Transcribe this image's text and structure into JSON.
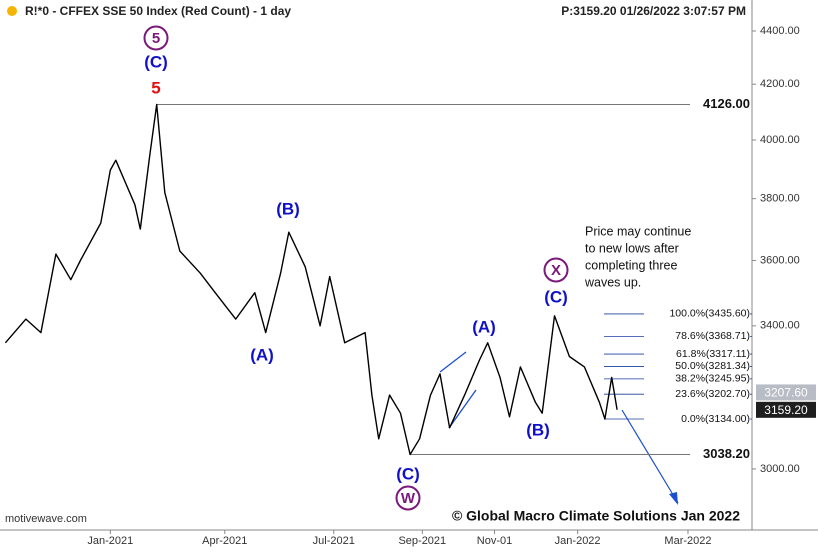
{
  "chart_data": {
    "type": "line",
    "title": "R!*0 - CFFEX SSE 50 Index (Red Count) - 1 day",
    "price_header": "P:3159.20  01/26/2022 3:07:57 PM",
    "log_scale": true,
    "grid": false,
    "x": [
      -77,
      -62,
      -51,
      -40,
      -29,
      -22,
      -7,
      0,
      4,
      18,
      22,
      29,
      34,
      40,
      51,
      66,
      77,
      92,
      106,
      114,
      125,
      131,
      143,
      154,
      161,
      172,
      187,
      192,
      197,
      205,
      213,
      220,
      227,
      235,
      242,
      249,
      260,
      271,
      277,
      286,
      293,
      301,
      312,
      317,
      326,
      337,
      348,
      359,
      363,
      368,
      372
    ],
    "series": [
      {
        "color": "#000000",
        "values": [
          3350,
          3420,
          3380,
          3620,
          3540,
          3600,
          3720,
          3896,
          3930,
          3780,
          3700,
          3950,
          4126,
          3820,
          3630,
          3560,
          3500,
          3420,
          3500,
          3380,
          3560,
          3690,
          3580,
          3400,
          3550,
          3350,
          3380,
          3200,
          3080,
          3200,
          3150,
          3038.2,
          3080,
          3200,
          3260,
          3110,
          3200,
          3300,
          3350,
          3250,
          3140,
          3280,
          3180,
          3150,
          3430,
          3310,
          3280,
          3180,
          3134,
          3250,
          3159.2
        ]
      }
    ],
    "xlim": [
      -81,
      471
    ],
    "xticks": [
      {
        "value": 0,
        "label": "Jan-2021"
      },
      {
        "value": 84,
        "label": "Apr-2021"
      },
      {
        "value": 164,
        "label": "Jul-2021"
      },
      {
        "value": 229,
        "label": "Sep-2021"
      },
      {
        "value": 282,
        "label": "Nov-01"
      },
      {
        "value": 343,
        "label": "Jan-2022"
      },
      {
        "value": 424,
        "label": "Mar-2022"
      }
    ],
    "ylim": [
      2844,
      4521
    ],
    "yticks": [
      {
        "value": 3000,
        "label": "3000.00"
      },
      {
        "value": 3400,
        "label": "3400.00"
      },
      {
        "value": 3600,
        "label": "3600.00"
      },
      {
        "value": 3800,
        "label": "3800.00"
      },
      {
        "value": 4000,
        "label": "4000.00"
      },
      {
        "value": 4200,
        "label": "4200.00"
      },
      {
        "value": 4400,
        "label": "4400.00"
      }
    ],
    "levels": [
      {
        "value": 4126,
        "label": "4126.00"
      },
      {
        "value": 3038.2,
        "label": "3038.20"
      }
    ],
    "fib_levels": [
      {
        "value": 3435.6,
        "label": "100.0%(3435.60)"
      },
      {
        "value": 3368.71,
        "label": "78.6%(3368.71)"
      },
      {
        "value": 3317.11,
        "label": "61.8%(3317.11)"
      },
      {
        "value": 3281.34,
        "label": "50.0%(3281.34)"
      },
      {
        "value": 3245.95,
        "label": "38.2%(3245.95)"
      },
      {
        "value": 3202.7,
        "label": "23.6%(3202.70)"
      },
      {
        "value": 3134,
        "label": "0.0%(3134.00)"
      }
    ],
    "price_tags": [
      {
        "value": 3207.6,
        "label": "3207.60",
        "color": "#b8bcc4"
      },
      {
        "value": 3159.2,
        "label": "3159.20",
        "color": "#1e1e1e"
      }
    ],
    "wave_labels": [
      {
        "text": "5",
        "color": "#7a1a7a",
        "circled": true
      },
      {
        "text": "(C)",
        "color": "#1010c8",
        "circled": false
      },
      {
        "text": "5",
        "color": "#e01010",
        "circled": false
      },
      {
        "text": "(B)",
        "color": "#1010c8",
        "circled": false
      },
      {
        "text": "(A)",
        "color": "#1010c8",
        "circled": false
      },
      {
        "text": "(A)",
        "color": "#1010c8",
        "circled": false
      },
      {
        "text": "(B)",
        "color": "#1010c8",
        "circled": false
      },
      {
        "text": "(C)",
        "color": "#1010c8",
        "circled": false
      },
      {
        "text": "W",
        "color": "#7a1a7a",
        "circled": true
      },
      {
        "text": "X",
        "color": "#7a1a7a",
        "circled": true
      },
      {
        "text": "(C)",
        "color": "#1010c8",
        "circled": false
      }
    ],
    "note_lines": [
      "Price may continue",
      "to new lows after",
      "completing three",
      "waves up."
    ],
    "footer": "© Global Macro Climate Solutions Jan 2022",
    "watermark": "motivewave.com"
  }
}
